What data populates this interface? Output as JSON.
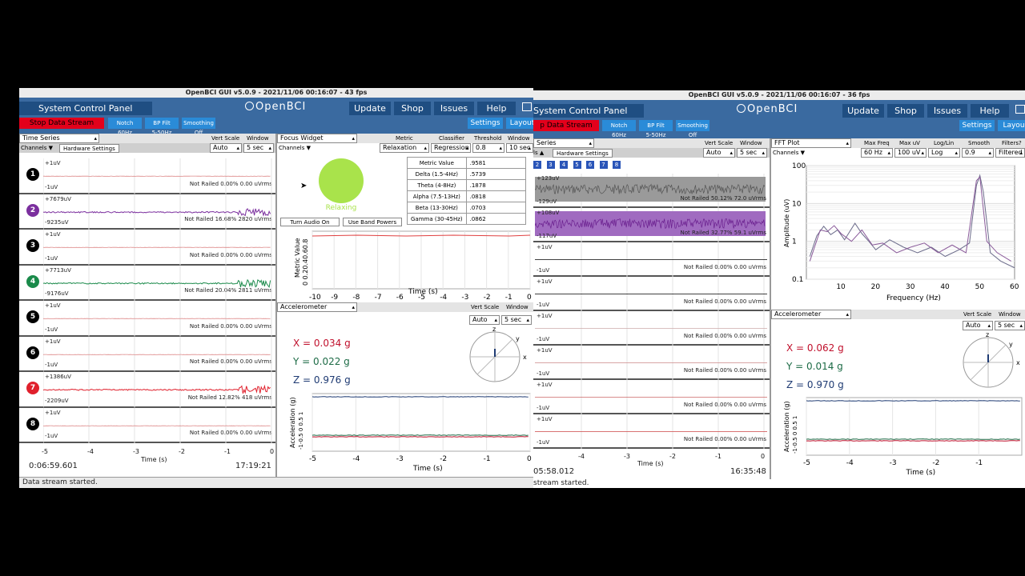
{
  "win1": {
    "title": "OpenBCI GUI v5.0.9 - 2021/11/06 00:16:07 - 43 fps",
    "menu": {
      "system_panel": "System Control Panel",
      "logo": "OpenBCI",
      "update": "Update",
      "shop": "Shop",
      "issues": "Issues",
      "help": "Help"
    },
    "controls": {
      "stop": "Stop Data Stream",
      "notch": "Notch",
      "notch_val": "60Hz",
      "bpfilt": "BP Filt",
      "bpfilt_val": "5-50Hz",
      "smoothing": "Smoothing",
      "smoothing_val": "Off",
      "settings": "Settings",
      "layout": "Layout"
    },
    "timeseries": {
      "title": "Time Series",
      "channels": "Channels ▼",
      "hw": "Hardware Settings",
      "vscale": "Vert Scale",
      "window": "Window",
      "vscale_val": "Auto",
      "window_val": "5 sec",
      "channels_list": [
        {
          "n": "1",
          "top": "+1uV",
          "bot": "-1uV",
          "stat": "Not Railed 0.00% 0.00 uVrms",
          "color": "#000000"
        },
        {
          "n": "2",
          "top": "+7679uV",
          "bot": "-9235uV",
          "stat": "Not Railed 16.68% 2820 uVrms",
          "color": "#7b2f9e"
        },
        {
          "n": "3",
          "top": "+1uV",
          "bot": "-1uV",
          "stat": "Not Railed 0.00% 0.00 uVrms",
          "color": "#000000"
        },
        {
          "n": "4",
          "top": "+7713uV",
          "bot": "-9176uV",
          "stat": "Not Railed 20.04% 2811 uVrms",
          "color": "#1a8a4a"
        },
        {
          "n": "5",
          "top": "+1uV",
          "bot": "-1uV",
          "stat": "Not Railed 0.00% 0.00 uVrms",
          "color": "#000000"
        },
        {
          "n": "6",
          "top": "+1uV",
          "bot": "-1uV",
          "stat": "Not Railed 0.00% 0.00 uVrms",
          "color": "#000000"
        },
        {
          "n": "7",
          "top": "+1386uV",
          "bot": "-2209uV",
          "stat": "Not Railed 12.82% 418 uVrms",
          "color": "#e0202c"
        },
        {
          "n": "8",
          "top": "+1uV",
          "bot": "-1uV",
          "stat": "Not Railed 0.00% 0.00 uVrms",
          "color": "#000000"
        }
      ],
      "xticks": [
        "-5",
        "-4",
        "-3",
        "-2",
        "-1",
        "0"
      ],
      "xlabel": "Time (s)",
      "elapsed": "0:06:59.601",
      "clock": "17:19:21"
    },
    "focus": {
      "title": "Focus Widget",
      "channels": "Channels ▼",
      "metric": "Metric",
      "classifier": "Classifier",
      "threshold": "Threshold",
      "window": "Window",
      "metric_val": "Relaxation",
      "classifier_val": "Regression",
      "threshold_val": "0.8",
      "window_val": "10 sec",
      "state": "Relaxing",
      "audio_btn": "Turn Audio On",
      "band_btn": "Use Band Powers",
      "table": [
        [
          "Metric Value",
          ".9581"
        ],
        [
          "Delta (1.5-4Hz)",
          ".5739"
        ],
        [
          "Theta (4-8Hz)",
          ".1878"
        ],
        [
          "Alpha (7.5-13Hz)",
          ".0818"
        ],
        [
          "Beta (13-30Hz)",
          ".0703"
        ],
        [
          "Gamma (30-45Hz)",
          ".0862"
        ]
      ],
      "ylabel": "Metric Value",
      "yticks": "0 0.20.40.60.8",
      "xticks": [
        "-10",
        "-9",
        "-8",
        "-7",
        "-6",
        "-5",
        "-4",
        "-3",
        "-2",
        "-1",
        "0"
      ],
      "xlabel": "Time (s)"
    },
    "accel": {
      "title": "Accelerometer",
      "vscale": "Vert Scale",
      "window": "Window",
      "vscale_val": "Auto",
      "window_val": "5 sec",
      "x": "X = 0.034 g",
      "y": "Y = 0.022 g",
      "z": "Z = 0.976 g",
      "ylabel": "Acceleration (g)",
      "yticks": "-1-0.5 0 0.5 1",
      "xticks": [
        "-5",
        "-4",
        "-3",
        "-2",
        "-1",
        "0"
      ],
      "xlabel": "Time (s)",
      "axis_z": "z",
      "axis_y": "y",
      "axis_x": "x"
    },
    "status": "Data stream started.",
    "colors": {
      "x": "#c0102c",
      "y": "#1d6b46",
      "z": "#1f3b73"
    }
  },
  "win2": {
    "title": "OpenBCI GUI v5.0.9 - 2021/11/06 00:16:07 - 36 fps",
    "menu": {
      "system_panel": "System Control Panel",
      "logo": "OpenBCI",
      "update": "Update",
      "shop": "Shop",
      "issues": "Issues",
      "help": "Help"
    },
    "controls": {
      "stop": "p Data Stream",
      "notch": "Notch",
      "notch_val": "60Hz",
      "bpfilt": "BP Filt",
      "bpfilt_val": "5-50Hz",
      "smoothing": "Smoothing",
      "smoothing_val": "Off",
      "settings": "Settings",
      "layout": "Layou"
    },
    "timeseries": {
      "title": "Series",
      "channels": "ls ▲",
      "hw": "Hardware Settings",
      "vscale": "Vert Scale",
      "window": "Window",
      "vscale_val": "Auto",
      "window_val": "5 sec",
      "chsq": [
        "2",
        "3",
        "4",
        "5",
        "6",
        "7",
        "8"
      ],
      "channels_list": [
        {
          "top": "+123uV",
          "bot": "-129uV",
          "stat": "Not Railed 50.12% 72.0 uVrms"
        },
        {
          "top": "+108uV",
          "bot": "-117uV",
          "stat": "Not Railed 32.77% 59.1 uVrms"
        },
        {
          "top": "+1uV",
          "bot": "-1uV",
          "stat": "Not Railed 0.00% 0.00 uVrms"
        },
        {
          "top": "+1uV",
          "bot": "-1uV",
          "stat": "Not Railed 0.00% 0.00 uVrms"
        },
        {
          "top": "+1uV",
          "bot": "-1uV",
          "stat": "Not Railed 0.00% 0.00 uVrms"
        },
        {
          "top": "+1uV",
          "bot": "-1uV",
          "stat": "Not Railed 0.00% 0.00 uVrms"
        },
        {
          "top": "+1uV",
          "bot": "-1uV",
          "stat": "Not Railed 0.00% 0.00 uVrms"
        },
        {
          "top": "+1uV",
          "bot": "-1uV",
          "stat": "Not Railed 0.00% 0.00 uVrms"
        }
      ],
      "xticks": [
        "-4",
        "-3",
        "-2",
        "-1",
        "0"
      ],
      "xlabel": "Time (s)",
      "elapsed": "05:58.012",
      "clock": "16:35:48"
    },
    "fft": {
      "title": "FFT Plot",
      "channels": "Channels ▼",
      "maxfreq": "Max Freq",
      "maxuv": "Max uV",
      "loglin": "Log/Lin",
      "smooth": "Smooth",
      "filters": "Filters?",
      "maxfreq_val": "60 Hz",
      "maxuv_val": "100 uV",
      "loglin_val": "Log",
      "smooth_val": "0.9",
      "filters_val": "Filtered",
      "yticks": [
        "100",
        "10",
        "1",
        "0.1"
      ],
      "xticks": [
        "10",
        "20",
        "30",
        "40",
        "50",
        "60"
      ],
      "xlabel": "Frequency (Hz)",
      "ylabel": "Amplitude (uV)"
    },
    "accel": {
      "title": "Accelerometer",
      "vscale": "Vert Scale",
      "window": "Window",
      "vscale_val": "Auto",
      "window_val": "5 sec",
      "x": "X = 0.062 g",
      "y": "Y = 0.014 g",
      "z": "Z = 0.970 g",
      "ylabel": "Acceleration (g)",
      "yticks": "-1-0.5 0 0.5 1",
      "xticks": [
        "-5",
        "-4",
        "-3",
        "-2",
        "-1"
      ],
      "xlabel": "Time (s)",
      "axis_z": "z",
      "axis_y": "y",
      "axis_x": "x"
    },
    "status": "stream started."
  }
}
